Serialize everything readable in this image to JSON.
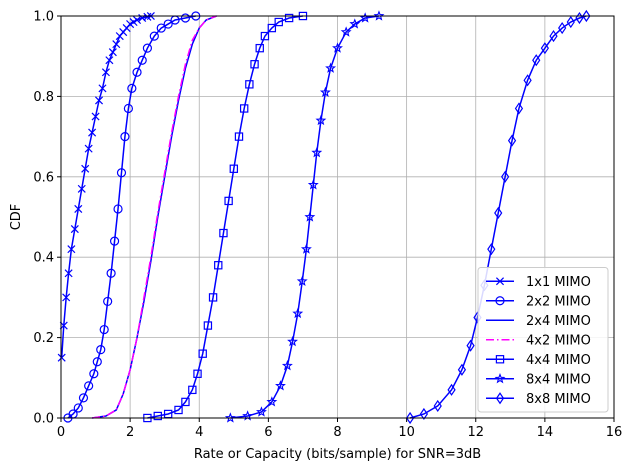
{
  "chart_data": {
    "type": "line",
    "title": "",
    "xlabel": "Rate or Capacity (bits/sample) for SNR=3dB",
    "ylabel": "CDF",
    "xlim": [
      0,
      16
    ],
    "ylim": [
      0,
      1
    ],
    "xticks": [
      0,
      2,
      4,
      6,
      8,
      10,
      12,
      14,
      16
    ],
    "yticks": [
      0.0,
      0.2,
      0.4,
      0.6,
      0.8,
      1.0
    ],
    "xtick_labels": [
      "0",
      "2",
      "4",
      "6",
      "8",
      "10",
      "12",
      "14",
      "16"
    ],
    "ytick_labels": [
      "0.0",
      "0.2",
      "0.4",
      "0.6",
      "0.8",
      "1.0"
    ],
    "grid": true,
    "legend_position": "lower-right",
    "series": [
      {
        "name": "1x1 MIMO",
        "color": "#0000ff",
        "line": "solid",
        "marker": "x",
        "points": [
          [
            0.02,
            0.15
          ],
          [
            0.08,
            0.23
          ],
          [
            0.15,
            0.3
          ],
          [
            0.22,
            0.36
          ],
          [
            0.3,
            0.42
          ],
          [
            0.4,
            0.47
          ],
          [
            0.5,
            0.52
          ],
          [
            0.6,
            0.57
          ],
          [
            0.7,
            0.62
          ],
          [
            0.8,
            0.67
          ],
          [
            0.9,
            0.71
          ],
          [
            1.0,
            0.75
          ],
          [
            1.1,
            0.79
          ],
          [
            1.2,
            0.82
          ],
          [
            1.3,
            0.86
          ],
          [
            1.4,
            0.89
          ],
          [
            1.5,
            0.91
          ],
          [
            1.6,
            0.93
          ],
          [
            1.7,
            0.95
          ],
          [
            1.8,
            0.96
          ],
          [
            1.9,
            0.97
          ],
          [
            2.0,
            0.98
          ],
          [
            2.1,
            0.985
          ],
          [
            2.2,
            0.99
          ],
          [
            2.35,
            0.995
          ],
          [
            2.5,
            0.998
          ],
          [
            2.6,
            1.0
          ]
        ]
      },
      {
        "name": "2x2 MIMO",
        "color": "#0000ff",
        "line": "solid",
        "marker": "circle",
        "points": [
          [
            0.2,
            0.0
          ],
          [
            0.35,
            0.01
          ],
          [
            0.5,
            0.025
          ],
          [
            0.65,
            0.05
          ],
          [
            0.8,
            0.08
          ],
          [
            0.95,
            0.11
          ],
          [
            1.05,
            0.14
          ],
          [
            1.15,
            0.17
          ],
          [
            1.25,
            0.22
          ],
          [
            1.35,
            0.29
          ],
          [
            1.45,
            0.36
          ],
          [
            1.55,
            0.44
          ],
          [
            1.65,
            0.52
          ],
          [
            1.75,
            0.61
          ],
          [
            1.85,
            0.7
          ],
          [
            1.95,
            0.77
          ],
          [
            2.05,
            0.82
          ],
          [
            2.2,
            0.86
          ],
          [
            2.35,
            0.89
          ],
          [
            2.5,
            0.92
          ],
          [
            2.7,
            0.95
          ],
          [
            2.9,
            0.97
          ],
          [
            3.1,
            0.98
          ],
          [
            3.3,
            0.99
          ],
          [
            3.6,
            0.995
          ],
          [
            3.9,
            1.0
          ]
        ]
      },
      {
        "name": "2x4 MIMO",
        "color": "#0000ff",
        "line": "solid",
        "marker": "none",
        "points": [
          [
            0.9,
            0.0
          ],
          [
            1.3,
            0.005
          ],
          [
            1.6,
            0.02
          ],
          [
            1.8,
            0.06
          ],
          [
            2.0,
            0.12
          ],
          [
            2.2,
            0.2
          ],
          [
            2.4,
            0.29
          ],
          [
            2.6,
            0.39
          ],
          [
            2.8,
            0.5
          ],
          [
            3.0,
            0.6
          ],
          [
            3.2,
            0.7
          ],
          [
            3.4,
            0.79
          ],
          [
            3.6,
            0.87
          ],
          [
            3.8,
            0.93
          ],
          [
            4.0,
            0.97
          ],
          [
            4.2,
            0.99
          ],
          [
            4.5,
            1.0
          ]
        ]
      },
      {
        "name": "4x2 MIMO",
        "color": "#ff00ff",
        "line": "dashdot",
        "marker": "none",
        "points": [
          [
            0.9,
            0.0
          ],
          [
            1.3,
            0.005
          ],
          [
            1.6,
            0.02
          ],
          [
            1.8,
            0.06
          ],
          [
            2.0,
            0.12
          ],
          [
            2.2,
            0.2
          ],
          [
            2.4,
            0.3
          ],
          [
            2.6,
            0.4
          ],
          [
            2.8,
            0.51
          ],
          [
            3.0,
            0.61
          ],
          [
            3.2,
            0.71
          ],
          [
            3.4,
            0.8
          ],
          [
            3.6,
            0.88
          ],
          [
            3.8,
            0.94
          ],
          [
            4.0,
            0.97
          ],
          [
            4.2,
            0.99
          ],
          [
            4.5,
            1.0
          ]
        ]
      },
      {
        "name": "4x4 MIMO",
        "color": "#0000ff",
        "line": "solid",
        "marker": "square",
        "points": [
          [
            2.5,
            0.0
          ],
          [
            2.8,
            0.005
          ],
          [
            3.1,
            0.01
          ],
          [
            3.4,
            0.02
          ],
          [
            3.6,
            0.04
          ],
          [
            3.8,
            0.07
          ],
          [
            3.95,
            0.11
          ],
          [
            4.1,
            0.16
          ],
          [
            4.25,
            0.23
          ],
          [
            4.4,
            0.3
          ],
          [
            4.55,
            0.38
          ],
          [
            4.7,
            0.46
          ],
          [
            4.85,
            0.54
          ],
          [
            5.0,
            0.62
          ],
          [
            5.15,
            0.7
          ],
          [
            5.3,
            0.77
          ],
          [
            5.45,
            0.83
          ],
          [
            5.6,
            0.88
          ],
          [
            5.75,
            0.92
          ],
          [
            5.9,
            0.95
          ],
          [
            6.1,
            0.97
          ],
          [
            6.3,
            0.985
          ],
          [
            6.6,
            0.995
          ],
          [
            7.0,
            1.0
          ]
        ]
      },
      {
        "name": "8x4 MIMO",
        "color": "#0000ff",
        "line": "solid",
        "marker": "star",
        "points": [
          [
            4.9,
            0.0
          ],
          [
            5.4,
            0.005
          ],
          [
            5.8,
            0.015
          ],
          [
            6.1,
            0.04
          ],
          [
            6.35,
            0.08
          ],
          [
            6.55,
            0.13
          ],
          [
            6.7,
            0.19
          ],
          [
            6.85,
            0.26
          ],
          [
            6.98,
            0.34
          ],
          [
            7.1,
            0.42
          ],
          [
            7.2,
            0.5
          ],
          [
            7.3,
            0.58
          ],
          [
            7.4,
            0.66
          ],
          [
            7.52,
            0.74
          ],
          [
            7.65,
            0.81
          ],
          [
            7.8,
            0.87
          ],
          [
            8.0,
            0.92
          ],
          [
            8.25,
            0.96
          ],
          [
            8.5,
            0.98
          ],
          [
            8.8,
            0.995
          ],
          [
            9.2,
            1.0
          ]
        ]
      },
      {
        "name": "8x8 MIMO",
        "color": "#0000ff",
        "line": "solid",
        "marker": "diamond",
        "points": [
          [
            10.1,
            0.0
          ],
          [
            10.5,
            0.01
          ],
          [
            10.9,
            0.03
          ],
          [
            11.3,
            0.07
          ],
          [
            11.6,
            0.12
          ],
          [
            11.85,
            0.18
          ],
          [
            12.05,
            0.25
          ],
          [
            12.25,
            0.33
          ],
          [
            12.45,
            0.42
          ],
          [
            12.65,
            0.51
          ],
          [
            12.85,
            0.6
          ],
          [
            13.05,
            0.69
          ],
          [
            13.25,
            0.77
          ],
          [
            13.5,
            0.84
          ],
          [
            13.75,
            0.89
          ],
          [
            14.0,
            0.92
          ],
          [
            14.25,
            0.95
          ],
          [
            14.5,
            0.97
          ],
          [
            14.75,
            0.985
          ],
          [
            15.0,
            0.995
          ],
          [
            15.2,
            1.0
          ]
        ]
      }
    ]
  }
}
